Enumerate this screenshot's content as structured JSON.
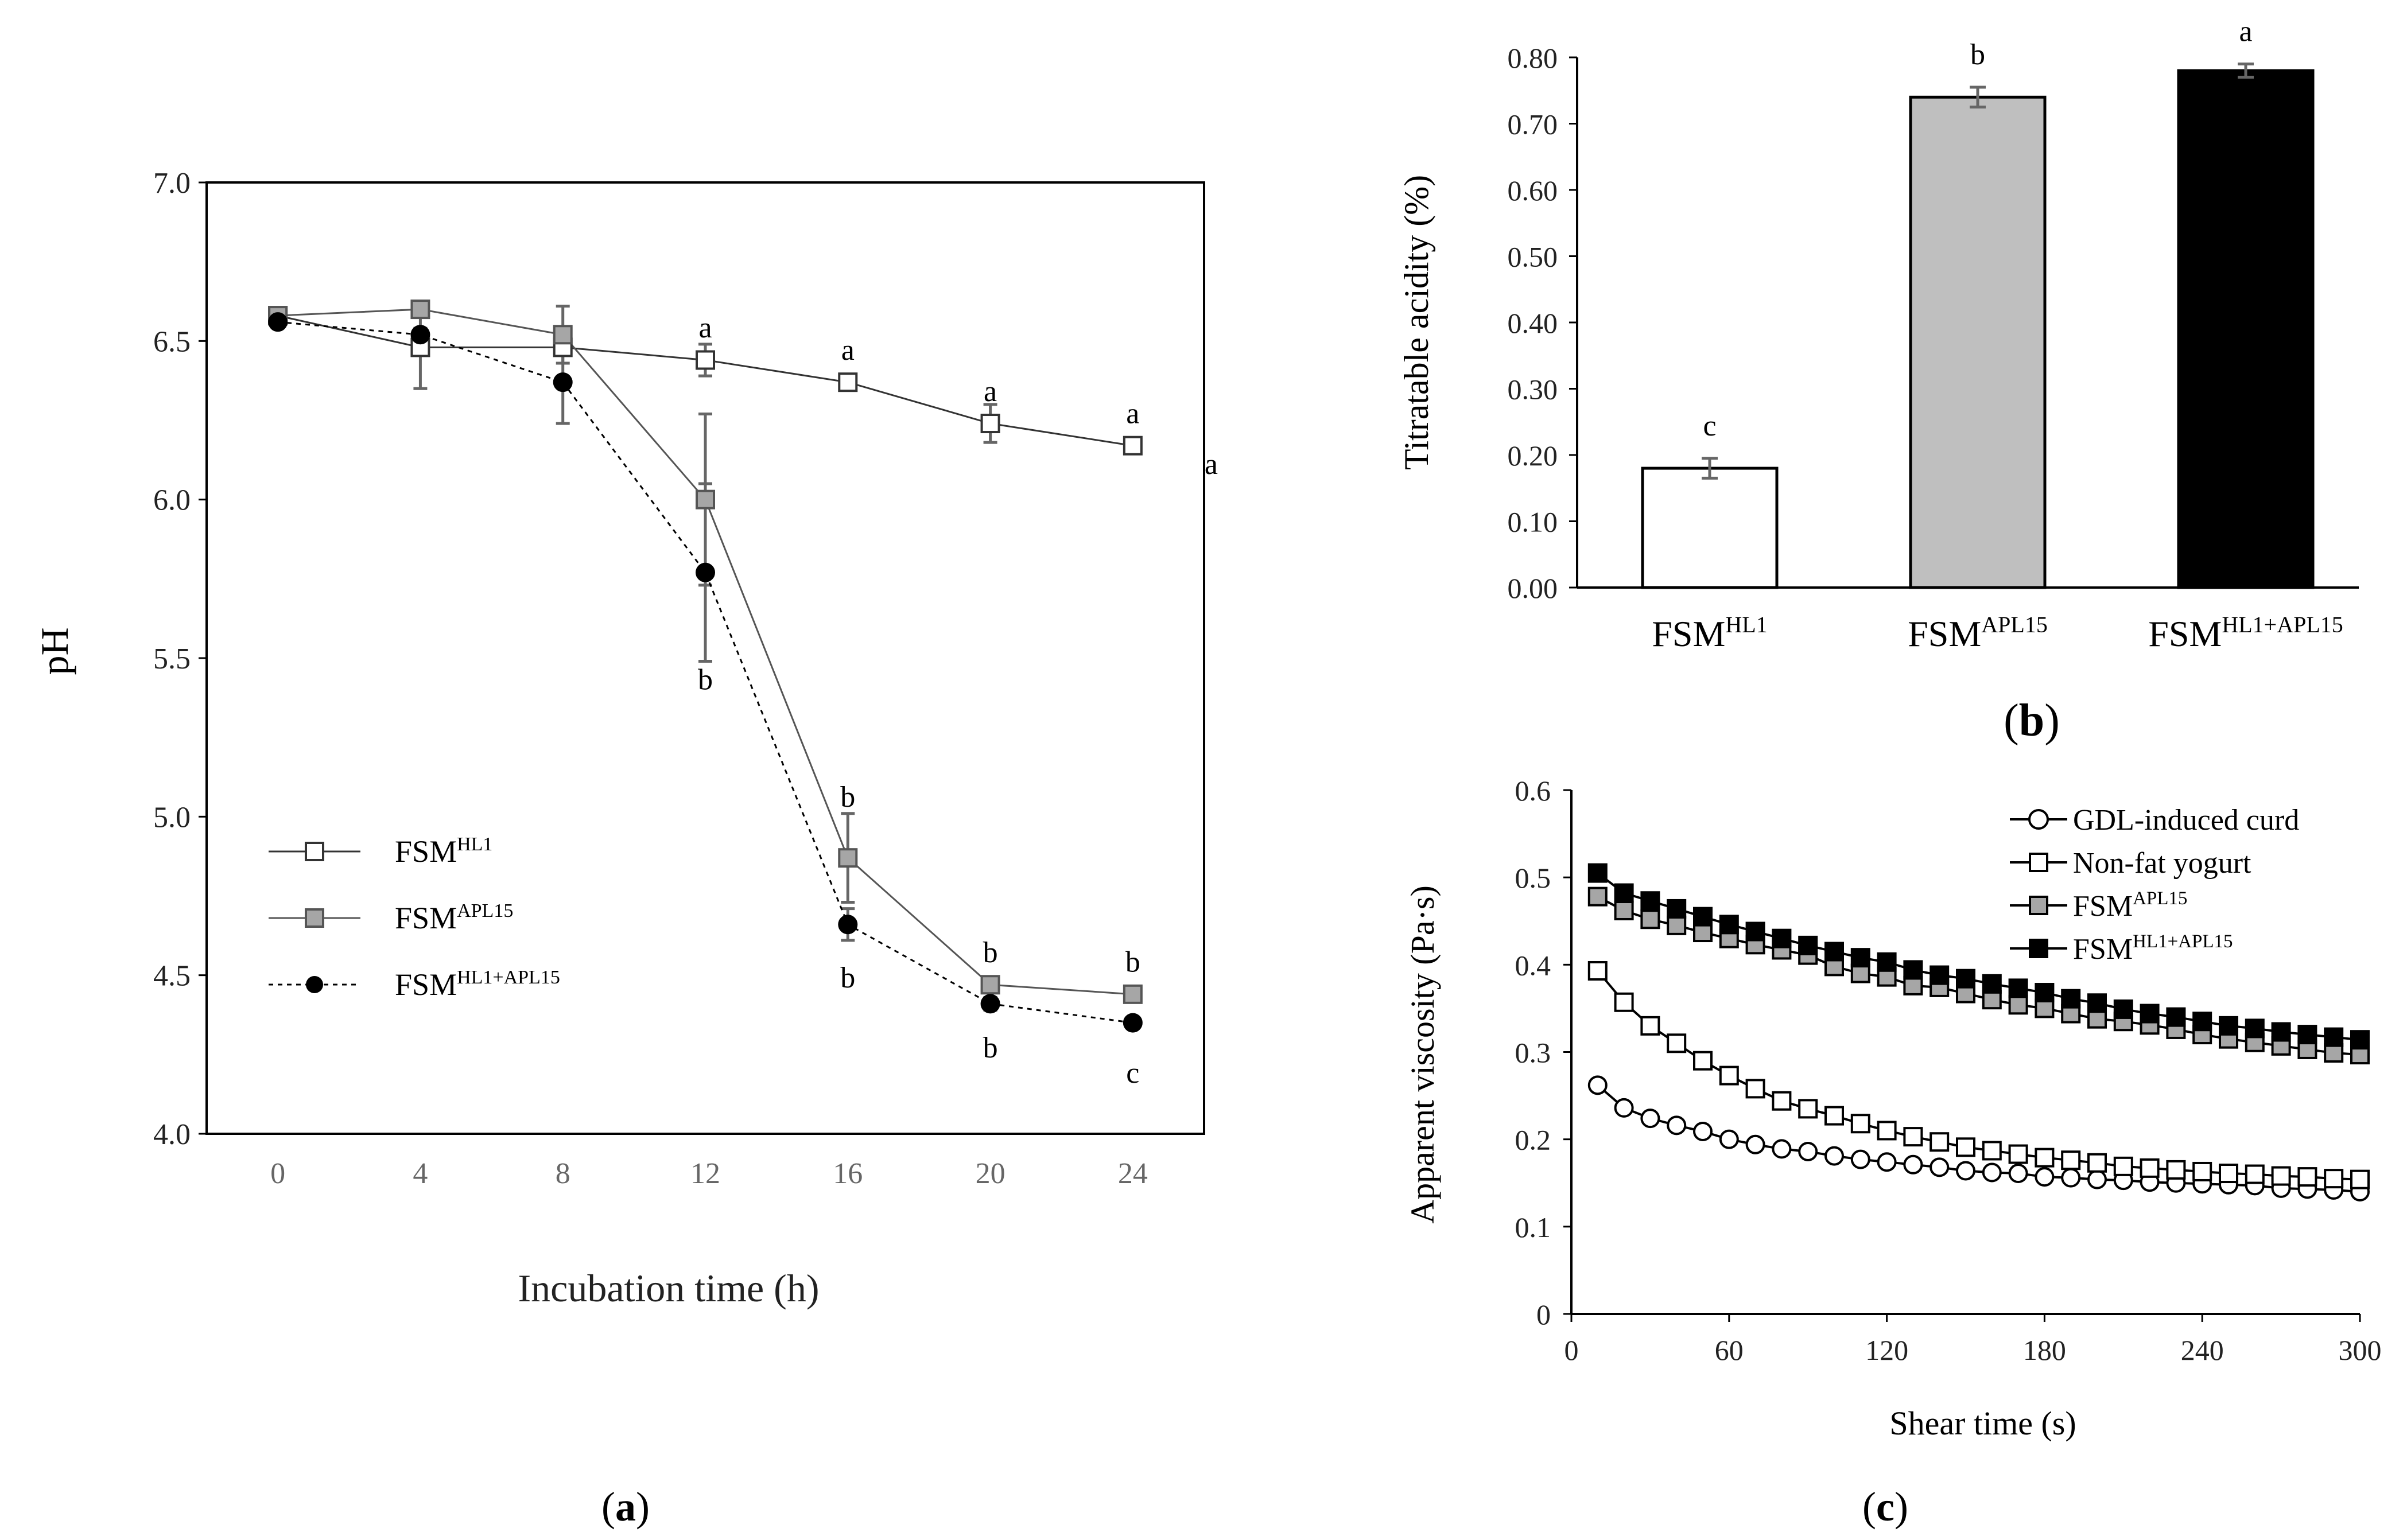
{
  "figure_labels": {
    "a": "a",
    "b": "b",
    "c": "c"
  },
  "chart_data": [
    {
      "id": "a",
      "type": "line",
      "panel_label": "a",
      "xlabel": "Incubation time (h)",
      "ylabel": "pH",
      "x": [
        0,
        4,
        8,
        12,
        16,
        20,
        24
      ],
      "xticks": [
        "0",
        "4",
        "8",
        "12",
        "16",
        "20",
        "24"
      ],
      "xlim": [
        -2,
        26
      ],
      "yticks": [
        "4.0",
        "4.5",
        "5.0",
        "5.5",
        "6.0",
        "6.5",
        "7.0"
      ],
      "ylim": [
        4.0,
        7.0
      ],
      "series": [
        {
          "name": "FSM",
          "sup": "HL1",
          "marker": "square",
          "fill": "#ffffff",
          "line": "#333333",
          "dash": "",
          "values": [
            6.58,
            6.48,
            6.48,
            6.44,
            6.37,
            6.24,
            6.17
          ],
          "err": [
            0,
            0.13,
            0.02,
            0.05,
            0.02,
            0.06,
            0.02
          ]
        },
        {
          "name": "FSM",
          "sup": "APL15",
          "marker": "square",
          "fill": "#a6a6a6",
          "line": "#555555",
          "dash": "",
          "values": [
            6.58,
            6.6,
            6.52,
            6.0,
            4.87,
            4.47,
            4.44
          ],
          "err": [
            0,
            0.02,
            0.09,
            0.27,
            0.14,
            0.02,
            0.02
          ]
        },
        {
          "name": "FSM",
          "sup": "HL1+APL15",
          "marker": "circle",
          "fill": "#000000",
          "line": "#000000",
          "dash": "8,8",
          "values": [
            6.56,
            6.52,
            6.37,
            5.77,
            4.66,
            4.41,
            4.35
          ],
          "err": [
            0,
            0.02,
            0.13,
            0.28,
            0.05,
            0.02,
            0.01
          ]
        }
      ],
      "annotations": [
        {
          "x": 12,
          "y": 6.54,
          "text": "a"
        },
        {
          "x": 16,
          "y": 6.47,
          "text": "a"
        },
        {
          "x": 20,
          "y": 6.34,
          "text": "a"
        },
        {
          "x": 24,
          "y": 6.27,
          "text": "a"
        },
        {
          "x": 26.2,
          "y": 6.11,
          "text": "a"
        },
        {
          "x": 12,
          "y": 5.43,
          "text": "b"
        },
        {
          "x": 16,
          "y": 5.06,
          "text": "b"
        },
        {
          "x": 16,
          "y": 4.49,
          "text": "b"
        },
        {
          "x": 20,
          "y": 4.57,
          "text": "b"
        },
        {
          "x": 20,
          "y": 4.27,
          "text": "b"
        },
        {
          "x": 24,
          "y": 4.54,
          "text": "b"
        },
        {
          "x": 24,
          "y": 4.19,
          "text": "c"
        }
      ],
      "legend": "lower-left"
    },
    {
      "id": "b",
      "type": "bar",
      "panel_label": "b",
      "ylabel": "Titratable  acidity  (%)",
      "categories": [
        "FSM",
        "FSM",
        "FSM"
      ],
      "category_sups": [
        "HL1",
        "APL15",
        "HL1+APL15"
      ],
      "values": [
        0.18,
        0.74,
        0.78
      ],
      "err": [
        0.015,
        0.015,
        0.01
      ],
      "colors": [
        "#ffffff",
        "#bfbfbf",
        "#000000"
      ],
      "letters": [
        "c",
        "b",
        "a"
      ],
      "yticks": [
        "0.00",
        "0.10",
        "0.20",
        "0.30",
        "0.40",
        "0.50",
        "0.60",
        "0.70",
        "0.80"
      ],
      "ylim": [
        0,
        0.8
      ]
    },
    {
      "id": "c",
      "type": "scatter",
      "panel_label": "c",
      "xlabel": "Shear time (s)",
      "ylabel": "Apparent viscosity  (Pa·s)",
      "x": [
        10,
        20,
        30,
        40,
        50,
        60,
        70,
        80,
        90,
        100,
        110,
        120,
        130,
        140,
        150,
        160,
        170,
        180,
        190,
        200,
        210,
        220,
        230,
        240,
        250,
        260,
        270,
        280,
        290,
        300
      ],
      "xticks": [
        "0",
        "60",
        "120",
        "180",
        "240",
        "300"
      ],
      "xlim": [
        0,
        300
      ],
      "yticks": [
        "0",
        "0.1",
        "0.2",
        "0.3",
        "0.4",
        "0.5",
        "0.6"
      ],
      "ylim": [
        0,
        0.6
      ],
      "series": [
        {
          "name": "GDL-induced curd",
          "sup": "",
          "marker": "circle",
          "fill": "#ffffff",
          "values": [
            0.262,
            0.236,
            0.224,
            0.216,
            0.209,
            0.2,
            0.194,
            0.189,
            0.186,
            0.181,
            0.177,
            0.174,
            0.171,
            0.168,
            0.164,
            0.162,
            0.161,
            0.157,
            0.156,
            0.154,
            0.153,
            0.151,
            0.15,
            0.149,
            0.148,
            0.147,
            0.144,
            0.143,
            0.142,
            0.14
          ]
        },
        {
          "name": "Non-fat yogurt",
          "sup": "",
          "marker": "square",
          "fill": "#ffffff",
          "values": [
            0.393,
            0.357,
            0.33,
            0.31,
            0.29,
            0.273,
            0.258,
            0.244,
            0.235,
            0.227,
            0.218,
            0.21,
            0.203,
            0.197,
            0.191,
            0.187,
            0.183,
            0.179,
            0.176,
            0.173,
            0.169,
            0.167,
            0.165,
            0.163,
            0.161,
            0.16,
            0.158,
            0.157,
            0.155,
            0.154
          ]
        },
        {
          "name": "FSM",
          "sup": "APL15",
          "marker": "square",
          "fill": "#a6a6a6",
          "values": [
            0.478,
            0.462,
            0.452,
            0.445,
            0.437,
            0.43,
            0.423,
            0.417,
            0.411,
            0.398,
            0.39,
            0.386,
            0.376,
            0.374,
            0.367,
            0.36,
            0.354,
            0.35,
            0.344,
            0.338,
            0.335,
            0.331,
            0.326,
            0.32,
            0.315,
            0.311,
            0.307,
            0.303,
            0.299,
            0.297
          ]
        },
        {
          "name": "FSM",
          "sup": "HL1+APL15",
          "marker": "square",
          "fill": "#000000",
          "values": [
            0.505,
            0.482,
            0.473,
            0.464,
            0.455,
            0.446,
            0.438,
            0.43,
            0.422,
            0.415,
            0.408,
            0.403,
            0.394,
            0.388,
            0.384,
            0.378,
            0.373,
            0.368,
            0.361,
            0.356,
            0.349,
            0.344,
            0.34,
            0.335,
            0.33,
            0.327,
            0.323,
            0.32,
            0.317,
            0.314
          ]
        }
      ],
      "legend": "top-right"
    }
  ]
}
